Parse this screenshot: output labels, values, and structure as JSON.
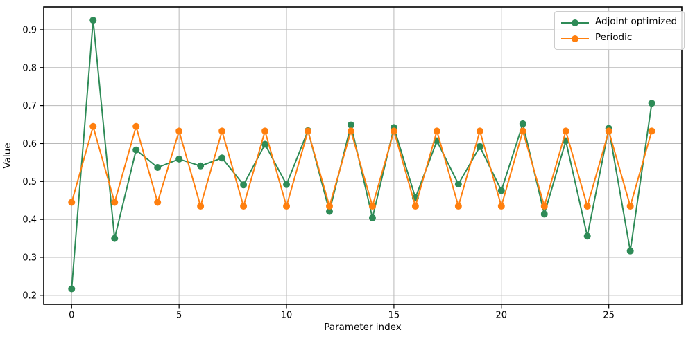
{
  "figure": {
    "background": "#ffffff",
    "grid_color": "#b8b8b8",
    "spine_color": "#000000",
    "text_color": "#000000"
  },
  "chart_data": {
    "type": "line",
    "title": "",
    "xlabel": "Parameter index",
    "ylabel": "Value",
    "x": [
      0,
      1,
      2,
      3,
      4,
      5,
      6,
      7,
      8,
      9,
      10,
      11,
      12,
      13,
      14,
      15,
      16,
      17,
      18,
      19,
      20,
      21,
      22,
      23,
      24,
      25,
      26,
      27
    ],
    "series": [
      {
        "name": "Adjoint optimized",
        "color": "#2e8b57",
        "marker": "circle",
        "values": [
          0.217,
          0.925,
          0.35,
          0.583,
          0.537,
          0.559,
          0.541,
          0.562,
          0.491,
          0.598,
          0.492,
          0.634,
          0.421,
          0.649,
          0.404,
          0.642,
          0.457,
          0.607,
          0.493,
          0.592,
          0.476,
          0.652,
          0.414,
          0.607,
          0.356,
          0.64,
          0.317,
          0.706
        ]
      },
      {
        "name": "Periodic",
        "color": "#ff7f0e",
        "marker": "circle",
        "values": [
          0.445,
          0.645,
          0.445,
          0.645,
          0.445,
          0.633,
          0.435,
          0.633,
          0.435,
          0.633,
          0.435,
          0.633,
          0.435,
          0.633,
          0.435,
          0.633,
          0.435,
          0.633,
          0.435,
          0.633,
          0.435,
          0.633,
          0.435,
          0.633,
          0.435,
          0.633,
          0.435,
          0.633
        ]
      }
    ],
    "xlim": [
      -1.3,
      28.4
    ],
    "ylim": [
      0.176,
      0.96
    ],
    "xticks": [
      0,
      5,
      10,
      15,
      20,
      25
    ],
    "yticks": [
      0.2,
      0.3,
      0.4,
      0.5,
      0.6,
      0.7,
      0.8,
      0.9
    ],
    "grid": true,
    "legend_position": "upper right"
  }
}
